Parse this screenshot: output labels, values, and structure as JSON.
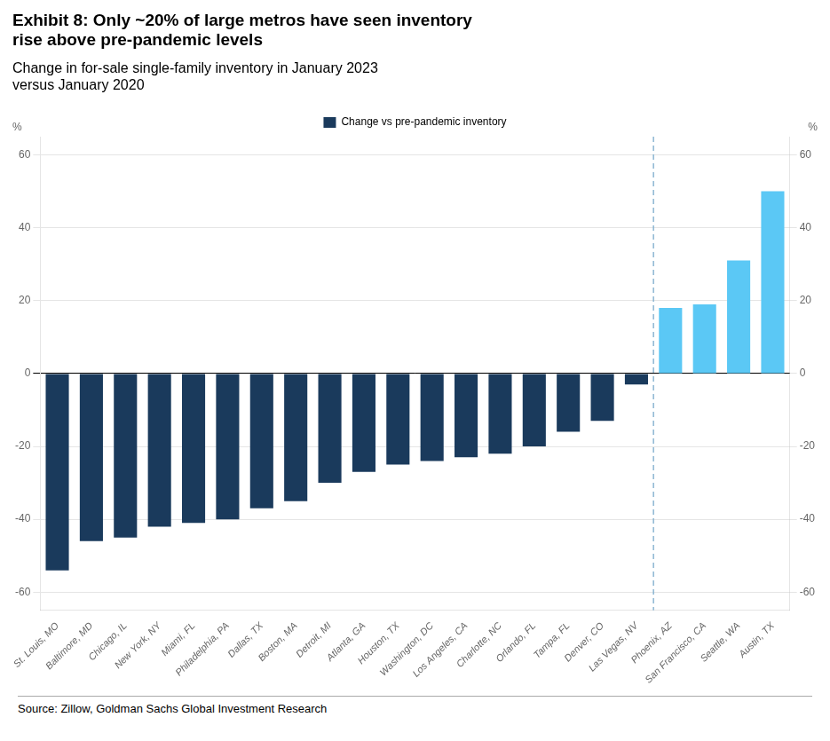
{
  "chart_data": {
    "type": "bar",
    "title": "Exhibit 8: Only ~20% of large metros have seen inventory\nrise above pre-pandemic levels",
    "subtitle": "Change in for-sale single-family inventory in January 2023\nversus January 2020",
    "source": "Source: Zillow, Goldman Sachs Global Investment Research",
    "categories": [
      "St. Louis, MO",
      "Baltimore, MD",
      "Chicago, IL",
      "New York, NY",
      "Miami, FL",
      "Philadelphia, PA",
      "Dallas, TX",
      "Boston, MA",
      "Detroit, MI",
      "Atlanta, GA",
      "Houston, TX",
      "Washington, DC",
      "Los Angeles, CA",
      "Charlotte, NC",
      "Orlando, FL",
      "Tampa, FL",
      "Denver, CO",
      "Las Vegas, NV",
      "Phoenix, AZ",
      "San Francisco, CA",
      "Seattle, WA",
      "Austin, TX"
    ],
    "series": [
      {
        "name": "Change vs pre-pandemic inventory",
        "color": "#1a3a5c",
        "colors": [
          "#1a3a5c",
          "#1a3a5c",
          "#1a3a5c",
          "#1a3a5c",
          "#1a3a5c",
          "#1a3a5c",
          "#1a3a5c",
          "#1a3a5c",
          "#1a3a5c",
          "#1a3a5c",
          "#1a3a5c",
          "#1a3a5c",
          "#1a3a5c",
          "#1a3a5c",
          "#1a3a5c",
          "#1a3a5c",
          "#1a3a5c",
          "#1a3a5c",
          "#5bc8f5",
          "#5bc8f5",
          "#5bc8f5",
          "#5bc8f5"
        ],
        "values": [
          -54,
          -46,
          -45,
          -42,
          -41,
          -40,
          -37,
          -35,
          -30,
          -27,
          -25,
          -24,
          -23,
          -22,
          -20,
          -16,
          -13,
          -3,
          18,
          19,
          31,
          50
        ]
      }
    ],
    "ylabel": "%",
    "y2label": "%",
    "ylim": [
      -65,
      65
    ],
    "yticks": [
      -60,
      -40,
      -20,
      0,
      20,
      40,
      60
    ],
    "y2lim": [
      -65,
      65
    ],
    "y2ticks": [
      -60,
      -40,
      -20,
      0,
      20,
      40,
      60
    ],
    "grid": true,
    "legend": "top"
  }
}
